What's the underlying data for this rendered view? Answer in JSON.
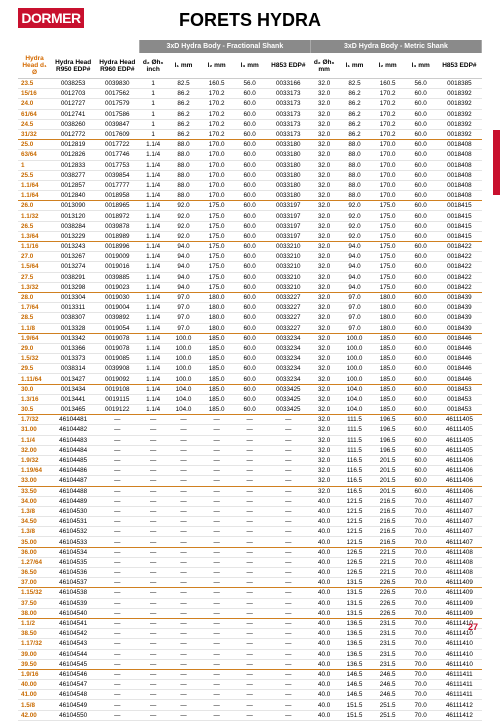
{
  "logo": "DORMER",
  "title": "FORETS HYDRA",
  "section1": "3xD Hydra Body - Fractional Shank",
  "section2": "3xD Hydra Body - Metric Shank",
  "page": "27",
  "heads": {
    "h1": "Hydra Head d₁ Ø",
    "h2": "Hydra Head R950 EDP#",
    "h3": "Hydra Head R960 EDP#",
    "h4": "d₂ Øh₆ inch",
    "h5": "l₁ mm",
    "h6": "l₂ mm",
    "h7": "l₃ mm",
    "h8": "H853 EDP#",
    "h9": "d₂ Øh₆ mm",
    "h10": "l₁ mm",
    "h11": "l₂ mm",
    "h12": "l₃ mm",
    "h13": "H853 EDP#"
  },
  "rows": [
    [
      "23.5",
      "0038253",
      "0039830",
      "1",
      "82.5",
      "160.5",
      "56.0",
      "0033166",
      "32.0",
      "82.5",
      "160.5",
      "56.0",
      "0018385"
    ],
    [
      "15/16",
      "0012703",
      "0017562",
      "1",
      "86.2",
      "170.2",
      "60.0",
      "0033173",
      "32.0",
      "86.2",
      "170.2",
      "60.0",
      "0018392"
    ],
    [
      "24.0",
      "0012727",
      "0017579",
      "1",
      "86.2",
      "170.2",
      "60.0",
      "0033173",
      "32.0",
      "86.2",
      "170.2",
      "60.0",
      "0018392"
    ],
    [
      "61/64",
      "0012741",
      "0017586",
      "1",
      "86.2",
      "170.2",
      "60.0",
      "0033173",
      "32.0",
      "86.2",
      "170.2",
      "60.0",
      "0018392"
    ],
    [
      "24.5",
      "0038260",
      "0039847",
      "1",
      "86.2",
      "170.2",
      "60.0",
      "0033173",
      "32.0",
      "86.2",
      "170.2",
      "60.0",
      "0018392"
    ],
    [
      "31/32",
      "0012772",
      "0017609",
      "1",
      "86.2",
      "170.2",
      "60.0",
      "0033173",
      "32.0",
      "86.2",
      "170.2",
      "60.0",
      "0018392"
    ],
    [
      "25.0",
      "0012819",
      "0017722",
      "1.1/4",
      "88.0",
      "170.0",
      "60.0",
      "0033180",
      "32.0",
      "88.0",
      "170.0",
      "60.0",
      "0018408"
    ],
    [
      "63/64",
      "0012826",
      "0017746",
      "1.1/4",
      "88.0",
      "170.0",
      "60.0",
      "0033180",
      "32.0",
      "88.0",
      "170.0",
      "60.0",
      "0018408"
    ],
    [
      "1",
      "0012833",
      "0017753",
      "1.1/4",
      "88.0",
      "170.0",
      "60.0",
      "0033180",
      "32.0",
      "88.0",
      "170.0",
      "60.0",
      "0018408"
    ],
    [
      "25.5",
      "0038277",
      "0039854",
      "1.1/4",
      "88.0",
      "170.0",
      "60.0",
      "0033180",
      "32.0",
      "88.0",
      "170.0",
      "60.0",
      "0018408"
    ],
    [
      "1.1/64",
      "0012857",
      "0017777",
      "1.1/4",
      "88.0",
      "170.0",
      "60.0",
      "0033180",
      "32.0",
      "88.0",
      "170.0",
      "60.0",
      "0018408"
    ],
    [
      "1.1/64",
      "0012840",
      "0018958",
      "1.1/4",
      "88.0",
      "170.0",
      "60.0",
      "0033180",
      "32.0",
      "88.0",
      "170.0",
      "60.0",
      "0018408"
    ],
    [
      "26.0",
      "0013090",
      "0018965",
      "1.1/4",
      "92.0",
      "175.0",
      "60.0",
      "0033197",
      "32.0",
      "92.0",
      "175.0",
      "60.0",
      "0018415"
    ],
    [
      "1.1/32",
      "0013120",
      "0018972",
      "1.1/4",
      "92.0",
      "175.0",
      "60.0",
      "0033197",
      "32.0",
      "92.0",
      "175.0",
      "60.0",
      "0018415"
    ],
    [
      "26.5",
      "0038284",
      "0039878",
      "1.1/4",
      "92.0",
      "175.0",
      "60.0",
      "0033197",
      "32.0",
      "92.0",
      "175.0",
      "60.0",
      "0018415"
    ],
    [
      "1.3/64",
      "0013229",
      "0018989",
      "1.1/4",
      "92.0",
      "175.0",
      "60.0",
      "0033197",
      "32.0",
      "92.0",
      "175.0",
      "60.0",
      "0018415"
    ],
    [
      "1.1/16",
      "0013243",
      "0018996",
      "1.1/4",
      "94.0",
      "175.0",
      "60.0",
      "0033210",
      "32.0",
      "94.0",
      "175.0",
      "60.0",
      "0018422"
    ],
    [
      "27.0",
      "0013267",
      "0019009",
      "1.1/4",
      "94.0",
      "175.0",
      "60.0",
      "0033210",
      "32.0",
      "94.0",
      "175.0",
      "60.0",
      "0018422"
    ],
    [
      "1.5/64",
      "0013274",
      "0019016",
      "1.1/4",
      "94.0",
      "175.0",
      "60.0",
      "0033210",
      "32.0",
      "94.0",
      "175.0",
      "60.0",
      "0018422"
    ],
    [
      "27.5",
      "0038291",
      "0039885",
      "1.1/4",
      "94.0",
      "175.0",
      "60.0",
      "0033210",
      "32.0",
      "94.0",
      "175.0",
      "60.0",
      "0018422"
    ],
    [
      "1.3/32",
      "0013298",
      "0019023",
      "1.1/4",
      "94.0",
      "175.0",
      "60.0",
      "0033210",
      "32.0",
      "94.0",
      "175.0",
      "60.0",
      "0018422"
    ],
    [
      "28.0",
      "0013304",
      "0019030",
      "1.1/4",
      "97.0",
      "180.0",
      "60.0",
      "0033227",
      "32.0",
      "97.0",
      "180.0",
      "60.0",
      "0018439"
    ],
    [
      "1.7/64",
      "0013311",
      "0019004",
      "1.1/4",
      "97.0",
      "180.0",
      "60.0",
      "0033227",
      "32.0",
      "97.0",
      "180.0",
      "60.0",
      "0018439"
    ],
    [
      "28.5",
      "0038307",
      "0039892",
      "1.1/4",
      "97.0",
      "180.0",
      "60.0",
      "0033227",
      "32.0",
      "97.0",
      "180.0",
      "60.0",
      "0018439"
    ],
    [
      "1.1/8",
      "0013328",
      "0019054",
      "1.1/4",
      "97.0",
      "180.0",
      "60.0",
      "0033227",
      "32.0",
      "97.0",
      "180.0",
      "60.0",
      "0018439"
    ],
    [
      "1.9/64",
      "0013342",
      "0019078",
      "1.1/4",
      "100.0",
      "185.0",
      "60.0",
      "0033234",
      "32.0",
      "100.0",
      "185.0",
      "60.0",
      "0018446"
    ],
    [
      "29.0",
      "0013366",
      "0019078",
      "1.1/4",
      "100.0",
      "185.0",
      "60.0",
      "0033234",
      "32.0",
      "100.0",
      "185.0",
      "60.0",
      "0018446"
    ],
    [
      "1.5/32",
      "0013373",
      "0019085",
      "1.1/4",
      "100.0",
      "185.0",
      "60.0",
      "0033234",
      "32.0",
      "100.0",
      "185.0",
      "60.0",
      "0018446"
    ],
    [
      "29.5",
      "0038314",
      "0039908",
      "1.1/4",
      "100.0",
      "185.0",
      "60.0",
      "0033234",
      "32.0",
      "100.0",
      "185.0",
      "60.0",
      "0018446"
    ],
    [
      "1.11/64",
      "0013427",
      "0019092",
      "1.1/4",
      "100.0",
      "185.0",
      "60.0",
      "0033234",
      "32.0",
      "100.0",
      "185.0",
      "60.0",
      "0018446"
    ],
    [
      "30.0",
      "0013434",
      "0019108",
      "1.1/4",
      "104.0",
      "185.0",
      "60.0",
      "0033425",
      "32.0",
      "104.0",
      "185.0",
      "60.0",
      "0018453"
    ],
    [
      "1.3/16",
      "0013441",
      "0019115",
      "1.1/4",
      "104.0",
      "185.0",
      "60.0",
      "0033425",
      "32.0",
      "104.0",
      "185.0",
      "60.0",
      "0018453"
    ],
    [
      "30.5",
      "0013465",
      "0019122",
      "1.1/4",
      "104.0",
      "185.0",
      "60.0",
      "0033425",
      "32.0",
      "104.0",
      "185.0",
      "60.0",
      "0018453"
    ],
    [
      "1.7/32",
      "46104481",
      "—",
      "—",
      "—",
      "—",
      "—",
      "—",
      "32.0",
      "111.5",
      "196.5",
      "60.0",
      "46111405"
    ],
    [
      "31.00",
      "46104482",
      "—",
      "—",
      "—",
      "—",
      "—",
      "—",
      "32.0",
      "111.5",
      "196.5",
      "60.0",
      "46111405"
    ],
    [
      "1.1/4",
      "46104483",
      "—",
      "—",
      "—",
      "—",
      "—",
      "—",
      "32.0",
      "111.5",
      "196.5",
      "60.0",
      "46111405"
    ],
    [
      "32.00",
      "46104484",
      "—",
      "—",
      "—",
      "—",
      "—",
      "—",
      "32.0",
      "111.5",
      "196.5",
      "60.0",
      "46111405"
    ],
    [
      "1.9/32",
      "46104485",
      "—",
      "—",
      "—",
      "—",
      "—",
      "—",
      "32.0",
      "116.5",
      "201.5",
      "60.0",
      "46111406"
    ],
    [
      "1.19/64",
      "46104486",
      "—",
      "—",
      "—",
      "—",
      "—",
      "—",
      "32.0",
      "116.5",
      "201.5",
      "60.0",
      "46111406"
    ],
    [
      "33.00",
      "46104487",
      "—",
      "—",
      "—",
      "—",
      "—",
      "—",
      "32.0",
      "116.5",
      "201.5",
      "60.0",
      "46111406"
    ],
    [
      "33.50",
      "46104488",
      "—",
      "—",
      "—",
      "—",
      "—",
      "—",
      "32.0",
      "116.5",
      "201.5",
      "60.0",
      "46111406"
    ],
    [
      "34.00",
      "46104489",
      "—",
      "—",
      "—",
      "—",
      "—",
      "—",
      "40.0",
      "121.5",
      "216.5",
      "70.0",
      "46111407"
    ],
    [
      "1.3/8",
      "46104530",
      "—",
      "—",
      "—",
      "—",
      "—",
      "—",
      "40.0",
      "121.5",
      "216.5",
      "70.0",
      "46111407"
    ],
    [
      "34.50",
      "46104531",
      "—",
      "—",
      "—",
      "—",
      "—",
      "—",
      "40.0",
      "121.5",
      "216.5",
      "70.0",
      "46111407"
    ],
    [
      "1.3/8",
      "46104532",
      "—",
      "—",
      "—",
      "—",
      "—",
      "—",
      "40.0",
      "121.5",
      "216.5",
      "70.0",
      "46111407"
    ],
    [
      "35.00",
      "46104533",
      "—",
      "—",
      "—",
      "—",
      "—",
      "—",
      "40.0",
      "121.5",
      "216.5",
      "70.0",
      "46111407"
    ],
    [
      "36.00",
      "46104534",
      "—",
      "—",
      "—",
      "—",
      "—",
      "—",
      "40.0",
      "126.5",
      "221.5",
      "70.0",
      "46111408"
    ],
    [
      "1.27/64",
      "46104535",
      "—",
      "—",
      "—",
      "—",
      "—",
      "—",
      "40.0",
      "126.5",
      "221.5",
      "70.0",
      "46111408"
    ],
    [
      "36.50",
      "46104536",
      "—",
      "—",
      "—",
      "—",
      "—",
      "—",
      "40.0",
      "126.5",
      "221.5",
      "70.0",
      "46111408"
    ],
    [
      "37.00",
      "46104537",
      "—",
      "—",
      "—",
      "—",
      "—",
      "—",
      "40.0",
      "131.5",
      "226.5",
      "70.0",
      "46111409"
    ],
    [
      "1.15/32",
      "46104538",
      "—",
      "—",
      "—",
      "—",
      "—",
      "—",
      "40.0",
      "131.5",
      "226.5",
      "70.0",
      "46111409"
    ],
    [
      "37.50",
      "46104539",
      "—",
      "—",
      "—",
      "—",
      "—",
      "—",
      "40.0",
      "131.5",
      "226.5",
      "70.0",
      "46111409"
    ],
    [
      "38.00",
      "46104540",
      "—",
      "—",
      "—",
      "—",
      "—",
      "—",
      "40.0",
      "131.5",
      "226.5",
      "70.0",
      "46111409"
    ],
    [
      "1.1/2",
      "46104541",
      "—",
      "—",
      "—",
      "—",
      "—",
      "—",
      "40.0",
      "136.5",
      "231.5",
      "70.0",
      "46111410"
    ],
    [
      "38.50",
      "46104542",
      "—",
      "—",
      "—",
      "—",
      "—",
      "—",
      "40.0",
      "136.5",
      "231.5",
      "70.0",
      "46111410"
    ],
    [
      "1.17/32",
      "46104543",
      "—",
      "—",
      "—",
      "—",
      "—",
      "—",
      "40.0",
      "136.5",
      "231.5",
      "70.0",
      "46111410"
    ],
    [
      "39.00",
      "46104544",
      "—",
      "—",
      "—",
      "—",
      "—",
      "—",
      "40.0",
      "136.5",
      "231.5",
      "70.0",
      "46111410"
    ],
    [
      "39.50",
      "46104545",
      "—",
      "—",
      "—",
      "—",
      "—",
      "—",
      "40.0",
      "136.5",
      "231.5",
      "70.0",
      "46111410"
    ],
    [
      "1.9/16",
      "46104546",
      "—",
      "—",
      "—",
      "—",
      "—",
      "—",
      "40.0",
      "146.5",
      "246.5",
      "70.0",
      "46111411"
    ],
    [
      "40.00",
      "46104547",
      "—",
      "—",
      "—",
      "—",
      "—",
      "—",
      "40.0",
      "146.5",
      "246.5",
      "70.0",
      "46111411"
    ],
    [
      "41.00",
      "46104548",
      "—",
      "—",
      "—",
      "—",
      "—",
      "—",
      "40.0",
      "146.5",
      "246.5",
      "70.0",
      "46111411"
    ],
    [
      "1.5/8",
      "46104549",
      "—",
      "—",
      "—",
      "—",
      "—",
      "—",
      "40.0",
      "151.5",
      "251.5",
      "70.0",
      "46111412"
    ],
    [
      "42.00",
      "46104550",
      "—",
      "—",
      "—",
      "—",
      "—",
      "—",
      "40.0",
      "151.5",
      "251.5",
      "70.0",
      "46111412"
    ]
  ],
  "hlRows": [
    5,
    11,
    15,
    20,
    24,
    29,
    32,
    39,
    45,
    49,
    52,
    57
  ]
}
